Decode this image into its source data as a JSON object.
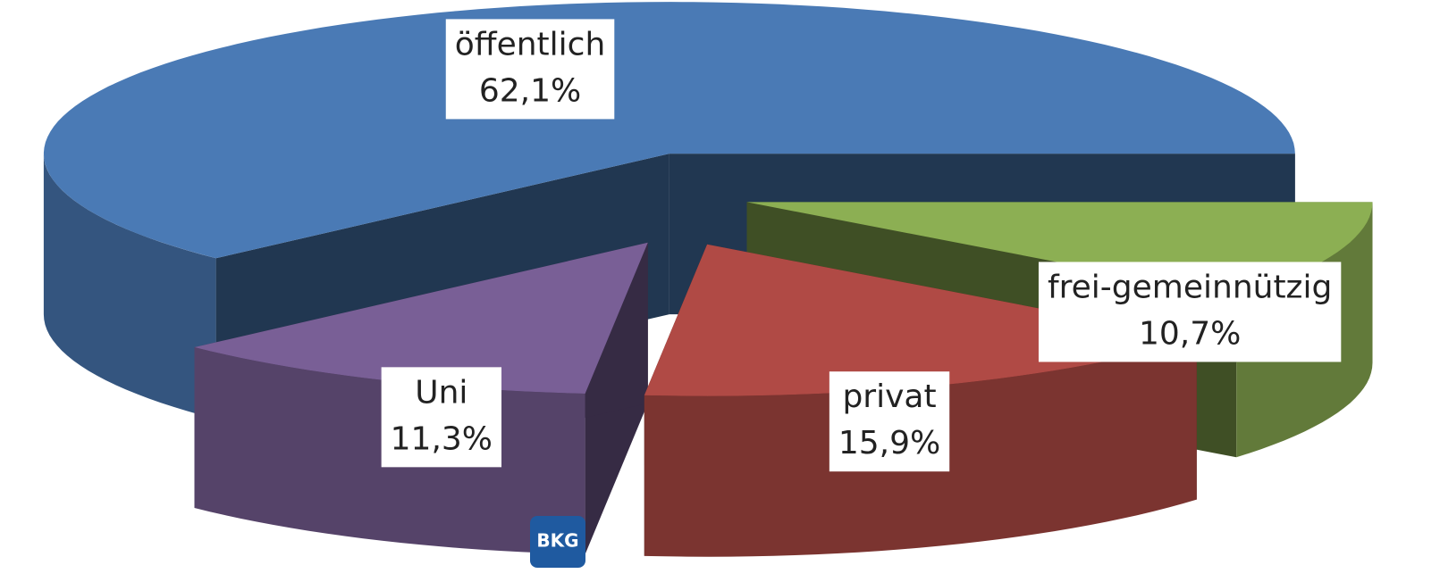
{
  "chart_data": {
    "type": "pie3d",
    "categories": [
      "öffentlich",
      "frei-gemeinnützig",
      "privat",
      "Uni"
    ],
    "values": [
      62.1,
      10.7,
      15.9,
      11.3
    ],
    "value_labels": [
      "62,1%",
      "10,7%",
      "15,9%",
      "11,3%"
    ],
    "colors": [
      "#4a7ab5",
      "#8caf53",
      "#b04a45",
      "#795f96"
    ]
  },
  "logo": "BKG"
}
